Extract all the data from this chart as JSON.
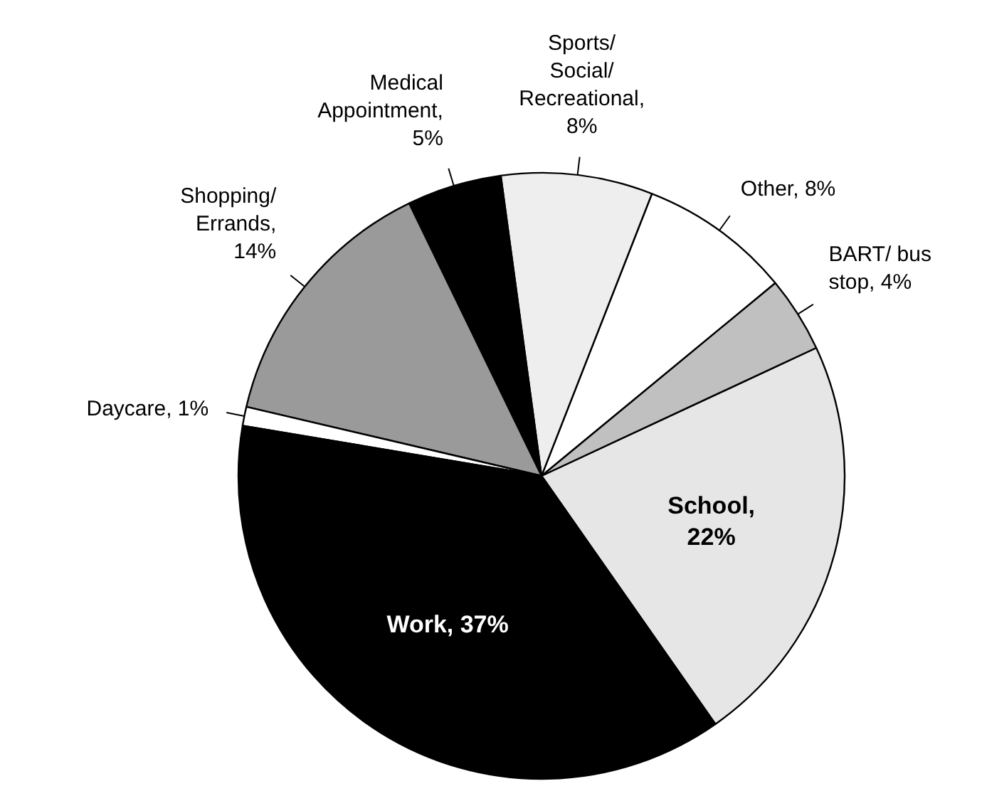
{
  "chart_data": {
    "type": "pie",
    "categories": [
      "School,\n22%",
      "BART/ bus\nstop, 4%",
      "Other, 8%",
      "Sports/\nSocial/\nRecreational,\n8%",
      "Medical\nAppointment,\n5%",
      "Shopping/\nErrands,\n14%",
      "Daycare, 1%",
      "Work, 37%"
    ],
    "values": [
      22,
      4,
      8,
      8,
      5,
      14,
      1,
      37
    ],
    "colors": [
      "#e6e6e6",
      "#c0c0c0",
      "#ffffff",
      "#eeeeee",
      "#000000",
      "#9a9a9a",
      "#ffffff",
      "#000000"
    ]
  }
}
